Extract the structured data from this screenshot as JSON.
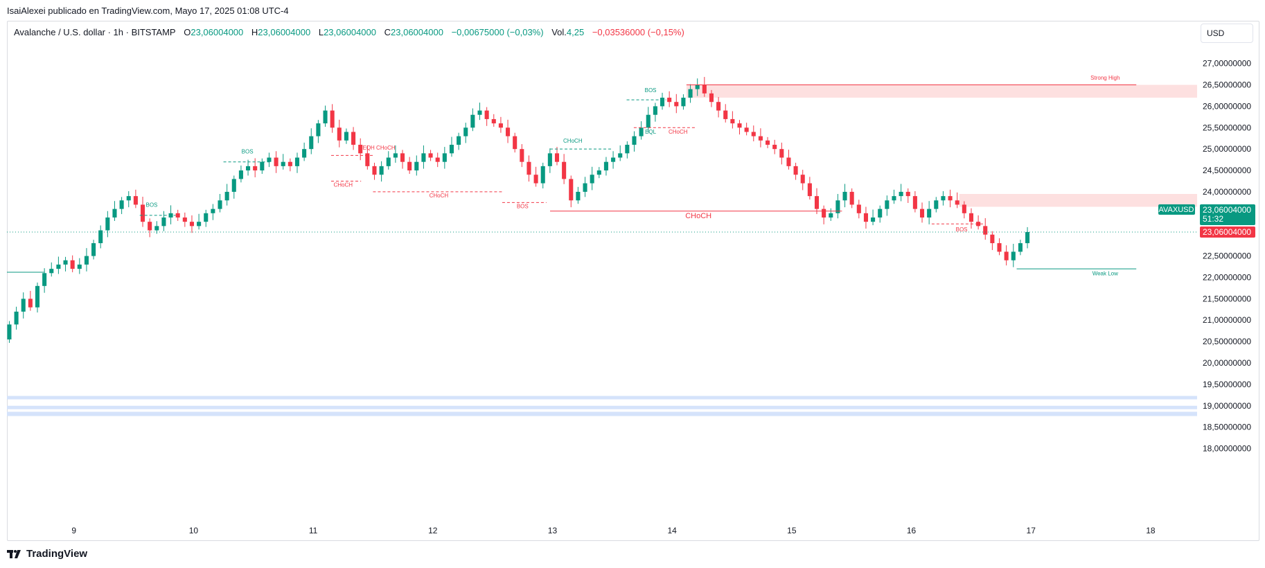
{
  "publish_line": "IsaiAlexei publicado en TradingView.com, Mayo 17, 2025 01:08 UTC-4",
  "header": {
    "symbol": "Avalanche / U.S. dollar · 1h · BITSTAMP",
    "o_label": "O",
    "o_value": "23,06004000",
    "h_label": "H",
    "h_value": "23,06004000",
    "l_label": "L",
    "l_value": "23,06004000",
    "c_label": "C",
    "c_value": "23,06004000",
    "change": "−0,00675000 (−0,03%)",
    "vol_label": "Vol.",
    "vol_value": "4,25",
    "vol_change": "−0,03536000 (−0,15%)"
  },
  "currency_button": "USD",
  "brand": "TradingView",
  "colors": {
    "up": "#089981",
    "down": "#f23645",
    "zone_red": "#fde0e0",
    "zone_blue": "#d5e3fb",
    "grid": "#e0e3eb"
  },
  "chart_data": {
    "type": "candlestick",
    "symbol": "AVAXUSD",
    "timeframe": "1h",
    "ylim": [
      17.75,
      27.35
    ],
    "y_ticks": [
      {
        "value": 18.0,
        "label": "18,00000000"
      },
      {
        "value": 18.5,
        "label": "18,50000000"
      },
      {
        "value": 19.0,
        "label": "19,00000000"
      },
      {
        "value": 19.5,
        "label": "19,50000000"
      },
      {
        "value": 20.0,
        "label": "20,00000000"
      },
      {
        "value": 20.5,
        "label": "20,50000000"
      },
      {
        "value": 21.0,
        "label": "21,00000000"
      },
      {
        "value": 21.5,
        "label": "21,50000000"
      },
      {
        "value": 22.0,
        "label": "22,00000000"
      },
      {
        "value": 22.5,
        "label": "22,50000000"
      },
      {
        "value": 23.5,
        "label": "23,50000000"
      },
      {
        "value": 24.0,
        "label": "24,00000000"
      },
      {
        "value": 24.5,
        "label": "24,50000000"
      },
      {
        "value": 25.0,
        "label": "25,00000000"
      },
      {
        "value": 25.5,
        "label": "25,50000000"
      },
      {
        "value": 26.0,
        "label": "26,00000000"
      },
      {
        "value": 26.5,
        "label": "26,50000000"
      },
      {
        "value": 27.0,
        "label": "27,00000000"
      }
    ],
    "x_ticks": [
      {
        "day": 9,
        "label": "9"
      },
      {
        "day": 10,
        "label": "10"
      },
      {
        "day": 11,
        "label": "11"
      },
      {
        "day": 12,
        "label": "12"
      },
      {
        "day": 13,
        "label": "13"
      },
      {
        "day": 14,
        "label": "14"
      },
      {
        "day": 15,
        "label": "15"
      },
      {
        "day": 16,
        "label": "16"
      },
      {
        "day": 17,
        "label": "17"
      },
      {
        "day": 18,
        "label": "18"
      }
    ],
    "x_range_days": [
      8.44,
      18.4
    ],
    "last_price": {
      "value": 23.06,
      "label": "23,06004000",
      "symbol_label": "AVAXUSD",
      "countdown": "51:32",
      "line_color": "#089981"
    },
    "prev_close_marker": {
      "value": 23.06,
      "label": "23,06004000"
    },
    "closes": [
      20.9,
      21.2,
      21.5,
      21.3,
      21.8,
      22.1,
      22.2,
      22.3,
      22.4,
      22.2,
      22.3,
      22.5,
      22.8,
      23.1,
      23.4,
      23.6,
      23.8,
      23.9,
      23.7,
      23.3,
      23.1,
      23.2,
      23.4,
      23.5,
      23.4,
      23.3,
      23.2,
      23.3,
      23.5,
      23.6,
      23.8,
      24.0,
      24.3,
      24.5,
      24.6,
      24.5,
      24.7,
      24.8,
      24.6,
      24.7,
      24.6,
      24.8,
      25.0,
      25.3,
      25.6,
      25.9,
      25.5,
      25.2,
      25.4,
      25.1,
      24.9,
      24.6,
      24.4,
      24.6,
      24.8,
      24.9,
      24.7,
      24.5,
      24.7,
      24.9,
      24.8,
      24.7,
      24.9,
      25.1,
      25.3,
      25.5,
      25.8,
      25.9,
      25.7,
      25.6,
      25.5,
      25.3,
      25.0,
      24.7,
      24.4,
      24.2,
      24.6,
      24.9,
      24.7,
      24.3,
      23.8,
      24.0,
      24.2,
      24.4,
      24.5,
      24.7,
      24.8,
      24.9,
      25.1,
      25.3,
      25.5,
      25.8,
      26.0,
      26.2,
      26.1,
      26.0,
      26.2,
      26.4,
      26.5,
      26.3,
      26.1,
      25.9,
      25.7,
      25.6,
      25.5,
      25.4,
      25.3,
      25.2,
      25.1,
      25.0,
      24.8,
      24.6,
      24.4,
      24.2,
      23.9,
      23.6,
      23.4,
      23.5,
      23.8,
      24.0,
      23.7,
      23.5,
      23.3,
      23.4,
      23.6,
      23.8,
      23.9,
      24.0,
      23.9,
      23.6,
      23.4,
      23.6,
      23.8,
      23.9,
      23.8,
      23.7,
      23.5,
      23.3,
      23.2,
      23.0,
      22.8,
      22.6,
      22.4,
      22.6,
      22.8,
      23.06
    ],
    "structure_labels": [
      {
        "text": "BOS",
        "color": "#089981"
      },
      {
        "text": "BOS",
        "color": "#089981"
      },
      {
        "text": "EQH CHoCH",
        "color": "#f23645"
      },
      {
        "text": "CHoCH",
        "color": "#f23645"
      },
      {
        "text": "CHoCH",
        "color": "#f23645"
      },
      {
        "text": "BOS",
        "color": "#f23645"
      },
      {
        "text": "CHoCH",
        "color": "#089981"
      },
      {
        "text": "BOS",
        "color": "#089981"
      },
      {
        "text": "EQL",
        "color": "#089981"
      },
      {
        "text": "CHoCH",
        "color": "#f23645"
      },
      {
        "text": "CHoCH",
        "color": "#f23645"
      },
      {
        "text": "BOS",
        "color": "#f23645"
      },
      {
        "text": "Strong High",
        "color": "#f23645"
      },
      {
        "text": "Weak Low",
        "color": "#089981"
      }
    ],
    "zones": [
      {
        "kind": "supply",
        "top": 26.5,
        "bottom": 26.2
      },
      {
        "kind": "supply",
        "top": 23.95,
        "bottom": 23.65
      },
      {
        "kind": "demand",
        "top": 19.23,
        "bottom": 19.15
      },
      {
        "kind": "demand",
        "top": 19.0,
        "bottom": 18.92
      },
      {
        "kind": "demand",
        "top": 18.86,
        "bottom": 18.76
      }
    ],
    "grid": false,
    "legend": "none"
  }
}
